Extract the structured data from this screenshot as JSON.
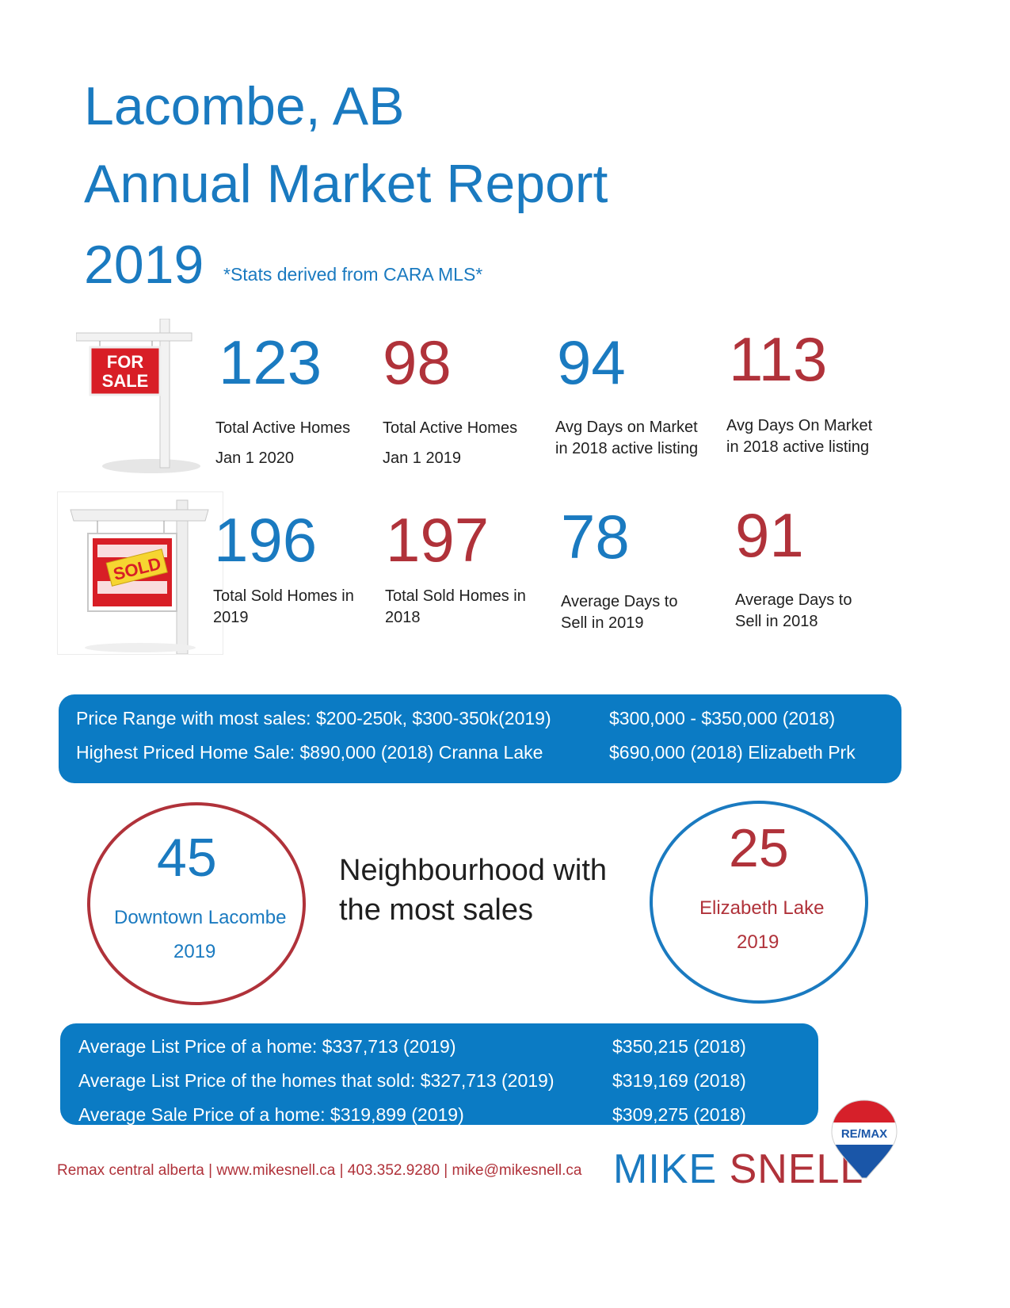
{
  "header": {
    "line1": "Lacombe, AB",
    "line2": "Annual Market Report",
    "year": "2019",
    "note": "*Stats derived from CARA MLS*"
  },
  "row1": [
    {
      "value": "123",
      "label1": "Total Active Homes",
      "label2": "Jan 1 2020",
      "color": "#1a7ac0"
    },
    {
      "value": "98",
      "label1": "Total Active Homes",
      "label2": "Jan 1 2019",
      "color": "#b0323a"
    },
    {
      "value": "94",
      "label1": "Avg Days on Market",
      "label2": "in 2018 active listing",
      "color": "#1a7ac0"
    },
    {
      "value": "113",
      "label1": "Avg Days On Market",
      "label2": "in 2018 active listing",
      "color": "#b0323a"
    }
  ],
  "row2": [
    {
      "value": "196",
      "label1": "Total Sold Homes in",
      "label2": "2019",
      "color": "#1a7ac0"
    },
    {
      "value": "197",
      "label1": "Total Sold Homes in",
      "label2": "2018",
      "color": "#b0323a"
    },
    {
      "value": "78",
      "label1": "Average Days to",
      "label2": "Sell in 2019",
      "color": "#1a7ac0"
    },
    {
      "value": "91",
      "label1": "Average Days to",
      "label2": "Sell in 2018",
      "color": "#b0323a"
    }
  ],
  "signs": {
    "for_sale": "FOR\nSALE",
    "for_sale_top": "FOR",
    "for_sale_bottom": "SALE",
    "sold": "SOLD"
  },
  "price_panel": {
    "r1_left": "Price Range with most sales: $200-250k, $300-350k(2019)",
    "r1_right": "$300,000 - $350,000 (2018)",
    "r2_left": "Highest Priced Home Sale: $890,000 (2018) Cranna Lake",
    "r2_right": "$690,000 (2018) Elizabeth Prk"
  },
  "neighbourhood": {
    "left": {
      "value": "45",
      "name": "Downtown Lacombe",
      "year": "2019"
    },
    "middle_line1": "Neighbourhood with",
    "middle_line2": "the most sales",
    "right": {
      "value": "25",
      "name": "Elizabeth Lake",
      "year": "2019"
    }
  },
  "avg_panel": {
    "r1_left": "Average List Price of a home:   $337,713 (2019)",
    "r1_right": "$350,215 (2018)",
    "r2_left": "Average List Price of the homes that sold: $327,713 (2019)",
    "r2_right": "$319,169 (2018)",
    "r3_left": "Average Sale Price of a home: $319,899 (2019)",
    "r3_right": "$309,275 (2018)"
  },
  "footer": {
    "contact": "Remax central alberta | www.mikesnell.ca | 403.352.9280 | mike@mikesnell.ca",
    "brand_first": "MIKE",
    "brand_last": "SNELL",
    "logo_text": "RE/MAX"
  },
  "colors": {
    "blue": "#1a7ac0",
    "red": "#b0323a",
    "panel": "#0b7bc4"
  }
}
